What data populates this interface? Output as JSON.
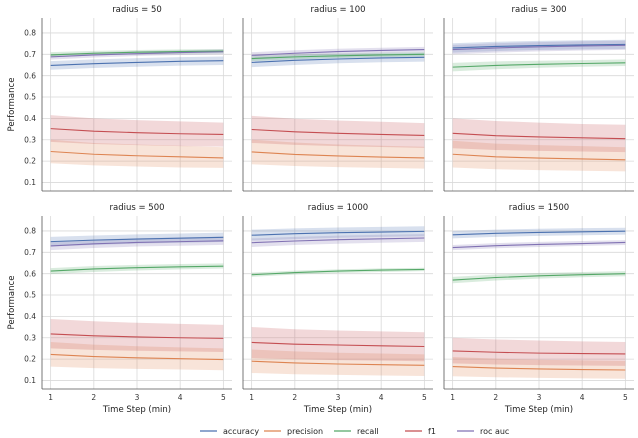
{
  "chart_data": {
    "type": "line",
    "x": [
      1,
      2,
      3,
      4,
      5
    ],
    "xlabel": "Time Step (min)",
    "ylabel": "Performance",
    "ylim": [
      0.06,
      0.87
    ],
    "xlim": [
      0.8,
      5.2
    ],
    "xticks": [
      "1",
      "2",
      "3",
      "4",
      "5"
    ],
    "yticks": [
      "0.1",
      "0.2",
      "0.3",
      "0.4",
      "0.5",
      "0.6",
      "0.7",
      "0.8"
    ],
    "grid": true,
    "legend": {
      "position": "bottom-center",
      "entries": [
        {
          "name": "accuracy",
          "color": "#4c72b0"
        },
        {
          "name": "precision",
          "color": "#dd8452"
        },
        {
          "name": "recall",
          "color": "#55a868"
        },
        {
          "name": "f1",
          "color": "#c44e52"
        },
        {
          "name": "roc auc",
          "color": "#8172b3"
        }
      ]
    },
    "panels": [
      {
        "title": "radius = 50",
        "series": [
          {
            "name": "accuracy",
            "values": [
              0.648,
              0.656,
              0.662,
              0.667,
              0.67
            ],
            "lower": [
              0.628,
              0.636,
              0.642,
              0.647,
              0.65
            ],
            "upper": [
              0.668,
              0.676,
              0.682,
              0.687,
              0.69
            ]
          },
          {
            "name": "precision",
            "values": [
              0.245,
              0.232,
              0.225,
              0.22,
              0.215
            ],
            "lower": [
              0.19,
              0.18,
              0.175,
              0.17,
              0.168
            ],
            "upper": [
              0.3,
              0.285,
              0.278,
              0.272,
              0.265
            ]
          },
          {
            "name": "recall",
            "values": [
              0.697,
              0.705,
              0.71,
              0.713,
              0.715
            ],
            "lower": [
              0.685,
              0.695,
              0.7,
              0.703,
              0.705
            ],
            "upper": [
              0.71,
              0.716,
              0.72,
              0.723,
              0.725
            ]
          },
          {
            "name": "f1",
            "values": [
              0.352,
              0.34,
              0.333,
              0.328,
              0.325
            ],
            "lower": [
              0.29,
              0.28,
              0.275,
              0.27,
              0.268
            ],
            "upper": [
              0.415,
              0.4,
              0.392,
              0.386,
              0.38
            ]
          },
          {
            "name": "roc auc",
            "values": [
              0.688,
              0.697,
              0.703,
              0.708,
              0.712
            ],
            "lower": [
              0.675,
              0.685,
              0.692,
              0.697,
              0.7
            ],
            "upper": [
              0.7,
              0.709,
              0.715,
              0.719,
              0.723
            ]
          }
        ]
      },
      {
        "title": "radius = 100",
        "series": [
          {
            "name": "accuracy",
            "values": [
              0.662,
              0.672,
              0.678,
              0.683,
              0.686
            ],
            "lower": [
              0.64,
              0.65,
              0.658,
              0.663,
              0.666
            ],
            "upper": [
              0.684,
              0.694,
              0.7,
              0.704,
              0.707
            ]
          },
          {
            "name": "precision",
            "values": [
              0.243,
              0.231,
              0.224,
              0.219,
              0.215
            ],
            "lower": [
              0.185,
              0.177,
              0.172,
              0.168,
              0.165
            ],
            "upper": [
              0.3,
              0.287,
              0.278,
              0.272,
              0.267
            ]
          },
          {
            "name": "recall",
            "values": [
              0.68,
              0.688,
              0.693,
              0.697,
              0.7
            ],
            "lower": [
              0.668,
              0.677,
              0.683,
              0.687,
              0.69
            ],
            "upper": [
              0.692,
              0.7,
              0.704,
              0.708,
              0.71
            ]
          },
          {
            "name": "f1",
            "values": [
              0.348,
              0.337,
              0.33,
              0.325,
              0.32
            ],
            "lower": [
              0.285,
              0.276,
              0.27,
              0.266,
              0.262
            ],
            "upper": [
              0.412,
              0.398,
              0.39,
              0.384,
              0.378
            ]
          },
          {
            "name": "roc auc",
            "values": [
              0.695,
              0.705,
              0.713,
              0.718,
              0.722
            ],
            "lower": [
              0.68,
              0.692,
              0.7,
              0.705,
              0.709
            ],
            "upper": [
              0.71,
              0.719,
              0.726,
              0.731,
              0.735
            ]
          }
        ]
      },
      {
        "title": "radius = 300",
        "series": [
          {
            "name": "accuracy",
            "values": [
              0.73,
              0.737,
              0.741,
              0.744,
              0.746
            ],
            "lower": [
              0.708,
              0.715,
              0.72,
              0.723,
              0.725
            ],
            "upper": [
              0.752,
              0.759,
              0.763,
              0.766,
              0.768
            ]
          },
          {
            "name": "precision",
            "values": [
              0.232,
              0.22,
              0.214,
              0.21,
              0.206
            ],
            "lower": [
              0.17,
              0.162,
              0.158,
              0.155,
              0.152
            ],
            "upper": [
              0.295,
              0.282,
              0.275,
              0.27,
              0.265
            ]
          },
          {
            "name": "recall",
            "values": [
              0.64,
              0.648,
              0.653,
              0.657,
              0.66
            ],
            "lower": [
              0.62,
              0.63,
              0.637,
              0.642,
              0.645
            ],
            "upper": [
              0.66,
              0.667,
              0.67,
              0.673,
              0.676
            ]
          },
          {
            "name": "f1",
            "values": [
              0.33,
              0.319,
              0.313,
              0.309,
              0.305
            ],
            "lower": [
              0.26,
              0.252,
              0.248,
              0.245,
              0.242
            ],
            "upper": [
              0.4,
              0.388,
              0.38,
              0.374,
              0.37
            ]
          },
          {
            "name": "roc auc",
            "values": [
              0.722,
              0.73,
              0.735,
              0.739,
              0.742
            ],
            "lower": [
              0.7,
              0.708,
              0.714,
              0.718,
              0.721
            ],
            "upper": [
              0.744,
              0.752,
              0.757,
              0.761,
              0.764
            ]
          }
        ]
      },
      {
        "title": "radius = 500",
        "series": [
          {
            "name": "accuracy",
            "values": [
              0.75,
              0.757,
              0.762,
              0.766,
              0.77
            ],
            "lower": [
              0.728,
              0.735,
              0.741,
              0.745,
              0.749
            ],
            "upper": [
              0.772,
              0.779,
              0.784,
              0.788,
              0.792
            ]
          },
          {
            "name": "precision",
            "values": [
              0.222,
              0.212,
              0.206,
              0.202,
              0.198
            ],
            "lower": [
              0.165,
              0.158,
              0.154,
              0.151,
              0.148
            ],
            "upper": [
              0.28,
              0.268,
              0.26,
              0.255,
              0.25
            ]
          },
          {
            "name": "recall",
            "values": [
              0.612,
              0.622,
              0.628,
              0.632,
              0.635
            ],
            "lower": [
              0.598,
              0.608,
              0.615,
              0.62,
              0.624
            ],
            "upper": [
              0.626,
              0.636,
              0.641,
              0.645,
              0.648
            ]
          },
          {
            "name": "f1",
            "values": [
              0.318,
              0.309,
              0.304,
              0.3,
              0.297
            ],
            "lower": [
              0.25,
              0.243,
              0.239,
              0.236,
              0.233
            ],
            "upper": [
              0.388,
              0.377,
              0.37,
              0.365,
              0.36
            ]
          },
          {
            "name": "roc auc",
            "values": [
              0.73,
              0.74,
              0.746,
              0.75,
              0.754
            ],
            "lower": [
              0.71,
              0.72,
              0.727,
              0.731,
              0.735
            ],
            "upper": [
              0.75,
              0.76,
              0.766,
              0.77,
              0.774
            ]
          }
        ]
      },
      {
        "title": "radius = 1000",
        "series": [
          {
            "name": "accuracy",
            "values": [
              0.78,
              0.787,
              0.792,
              0.795,
              0.798
            ],
            "lower": [
              0.755,
              0.762,
              0.768,
              0.772,
              0.775
            ],
            "upper": [
              0.806,
              0.812,
              0.816,
              0.819,
              0.822
            ]
          },
          {
            "name": "precision",
            "values": [
              0.19,
              0.182,
              0.177,
              0.174,
              0.171
            ],
            "lower": [
              0.135,
              0.129,
              0.126,
              0.123,
              0.121
            ],
            "upper": [
              0.245,
              0.236,
              0.23,
              0.226,
              0.222
            ]
          },
          {
            "name": "recall",
            "values": [
              0.595,
              0.605,
              0.612,
              0.617,
              0.62
            ],
            "lower": [
              0.585,
              0.596,
              0.603,
              0.608,
              0.612
            ],
            "upper": [
              0.605,
              0.614,
              0.62,
              0.625,
              0.628
            ]
          },
          {
            "name": "f1",
            "values": [
              0.278,
              0.27,
              0.266,
              0.262,
              0.259
            ],
            "lower": [
              0.205,
              0.199,
              0.195,
              0.193,
              0.19
            ],
            "upper": [
              0.35,
              0.34,
              0.334,
              0.33,
              0.326
            ]
          },
          {
            "name": "roc auc",
            "values": [
              0.745,
              0.753,
              0.759,
              0.763,
              0.767
            ],
            "lower": [
              0.725,
              0.734,
              0.74,
              0.745,
              0.749
            ],
            "upper": [
              0.765,
              0.772,
              0.778,
              0.782,
              0.785
            ]
          }
        ]
      },
      {
        "title": "radius = 1500",
        "series": [
          {
            "name": "accuracy",
            "values": [
              0.782,
              0.789,
              0.793,
              0.796,
              0.799
            ],
            "lower": [
              0.765,
              0.772,
              0.777,
              0.78,
              0.783
            ],
            "upper": [
              0.8,
              0.806,
              0.81,
              0.813,
              0.815
            ]
          },
          {
            "name": "precision",
            "values": [
              0.165,
              0.158,
              0.154,
              0.151,
              0.149
            ],
            "lower": [
              0.12,
              0.115,
              0.112,
              0.11,
              0.108
            ],
            "upper": [
              0.21,
              0.202,
              0.197,
              0.194,
              0.191
            ]
          },
          {
            "name": "recall",
            "values": [
              0.57,
              0.582,
              0.59,
              0.595,
              0.6
            ],
            "lower": [
              0.555,
              0.568,
              0.577,
              0.583,
              0.588
            ],
            "upper": [
              0.585,
              0.596,
              0.603,
              0.608,
              0.612
            ]
          },
          {
            "name": "f1",
            "values": [
              0.238,
              0.232,
              0.228,
              0.226,
              0.224
            ],
            "lower": [
              0.18,
              0.175,
              0.172,
              0.17,
              0.168
            ],
            "upper": [
              0.3,
              0.292,
              0.287,
              0.283,
              0.28
            ]
          },
          {
            "name": "roc auc",
            "values": [
              0.722,
              0.731,
              0.737,
              0.741,
              0.746
            ],
            "lower": [
              0.71,
              0.719,
              0.725,
              0.73,
              0.734
            ],
            "upper": [
              0.734,
              0.743,
              0.749,
              0.753,
              0.757
            ]
          }
        ]
      }
    ]
  }
}
